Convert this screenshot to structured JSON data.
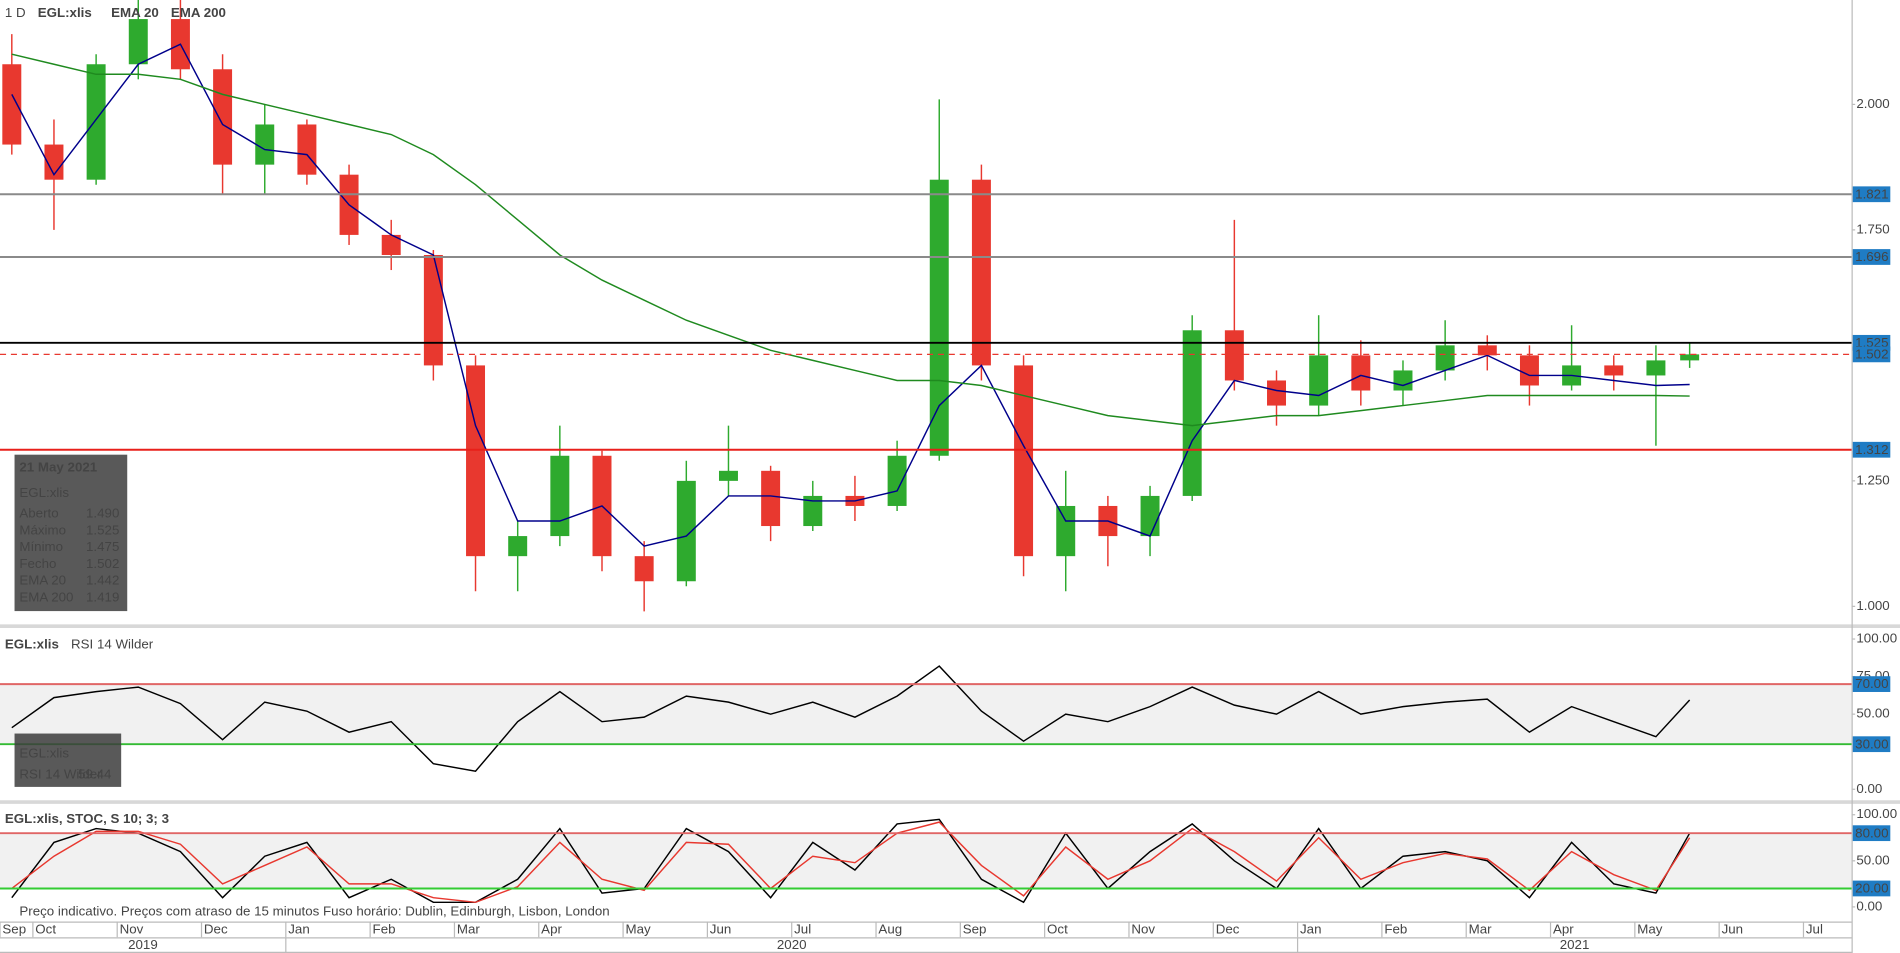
{
  "chart_data": [
    {
      "type": "candlestick",
      "interval": "1 D",
      "symbol": "EGL:xlis",
      "x": [
        0.75,
        1.25,
        1.75,
        2.25,
        2.75,
        3.25,
        3.75,
        4.25,
        4.75,
        5.25,
        5.75,
        6.25,
        6.75,
        7.25,
        7.75,
        8.25,
        8.75,
        9.25,
        9.75,
        10.25,
        10.75,
        11.25,
        11.75,
        12.25,
        12.75,
        13.25,
        13.75,
        14.25,
        14.75,
        15.25,
        15.75,
        16.25,
        16.75,
        17.25,
        17.75,
        18.25,
        18.75,
        19.25,
        19.75,
        20.25,
        20.65
      ],
      "open": [
        2.08,
        1.92,
        1.85,
        2.08,
        2.17,
        2.07,
        1.88,
        1.96,
        1.86,
        1.74,
        1.7,
        1.48,
        1.1,
        1.14,
        1.3,
        1.1,
        1.05,
        1.25,
        1.27,
        1.16,
        1.22,
        1.2,
        1.3,
        1.85,
        1.48,
        1.1,
        1.2,
        1.14,
        1.22,
        1.55,
        1.45,
        1.4,
        1.5,
        1.43,
        1.47,
        1.52,
        1.5,
        1.44,
        1.48,
        1.46,
        1.49
      ],
      "high": [
        2.14,
        1.97,
        2.1,
        2.23,
        2.25,
        2.1,
        2.0,
        1.97,
        1.88,
        1.77,
        1.71,
        1.5,
        1.17,
        1.36,
        1.31,
        1.13,
        1.29,
        1.36,
        1.28,
        1.25,
        1.26,
        1.33,
        2.01,
        1.88,
        1.5,
        1.27,
        1.22,
        1.24,
        1.58,
        1.77,
        1.47,
        1.58,
        1.53,
        1.49,
        1.57,
        1.54,
        1.52,
        1.56,
        1.5,
        1.52,
        1.525
      ],
      "low": [
        1.9,
        1.75,
        1.84,
        2.05,
        2.05,
        1.82,
        1.82,
        1.84,
        1.72,
        1.67,
        1.45,
        1.03,
        1.03,
        1.12,
        1.07,
        0.99,
        1.04,
        1.22,
        1.13,
        1.15,
        1.17,
        1.19,
        1.29,
        1.45,
        1.06,
        1.03,
        1.08,
        1.1,
        1.21,
        1.43,
        1.36,
        1.38,
        1.4,
        1.4,
        1.45,
        1.47,
        1.4,
        1.43,
        1.43,
        1.32,
        1.475
      ],
      "close": [
        1.92,
        1.85,
        2.08,
        2.17,
        2.07,
        1.88,
        1.96,
        1.86,
        1.74,
        1.7,
        1.48,
        1.1,
        1.14,
        1.3,
        1.1,
        1.05,
        1.25,
        1.27,
        1.16,
        1.22,
        1.2,
        1.3,
        1.85,
        1.48,
        1.1,
        1.2,
        1.14,
        1.22,
        1.55,
        1.45,
        1.4,
        1.5,
        1.43,
        1.47,
        1.52,
        1.5,
        1.44,
        1.48,
        1.46,
        1.49,
        1.502
      ],
      "up_color": "#2eaa2e",
      "down_color": "#e8382f",
      "series": [
        {
          "name": "EMA 20",
          "color": "#00008b",
          "values": [
            2.02,
            1.86,
            1.97,
            2.08,
            2.12,
            1.96,
            1.91,
            1.9,
            1.8,
            1.74,
            1.7,
            1.36,
            1.17,
            1.17,
            1.2,
            1.12,
            1.14,
            1.22,
            1.22,
            1.21,
            1.21,
            1.23,
            1.4,
            1.48,
            1.32,
            1.17,
            1.17,
            1.14,
            1.33,
            1.45,
            1.43,
            1.42,
            1.46,
            1.44,
            1.47,
            1.5,
            1.46,
            1.46,
            1.45,
            1.44,
            1.442
          ]
        },
        {
          "name": "EMA 200",
          "color": "#1f8a1f",
          "values": [
            2.1,
            2.08,
            2.06,
            2.06,
            2.05,
            2.02,
            2.0,
            1.98,
            1.96,
            1.94,
            1.9,
            1.84,
            1.77,
            1.7,
            1.65,
            1.61,
            1.57,
            1.54,
            1.51,
            1.49,
            1.47,
            1.45,
            1.45,
            1.44,
            1.42,
            1.4,
            1.38,
            1.37,
            1.36,
            1.37,
            1.38,
            1.38,
            1.39,
            1.4,
            1.41,
            1.42,
            1.42,
            1.42,
            1.42,
            1.42,
            1.419
          ]
        }
      ],
      "xlim": [
        0.61,
        22.57
      ],
      "xticks": [
        {
          "value": 0.61,
          "label": "Sep"
        },
        {
          "value": 1,
          "label": "Oct"
        },
        {
          "value": 2,
          "label": "Nov"
        },
        {
          "value": 3,
          "label": "Dec"
        },
        {
          "value": 4,
          "label": "Jan"
        },
        {
          "value": 5,
          "label": "Feb"
        },
        {
          "value": 6,
          "label": "Mar"
        },
        {
          "value": 7,
          "label": "Apr"
        },
        {
          "value": 8,
          "label": "May"
        },
        {
          "value": 9,
          "label": "Jun"
        },
        {
          "value": 10,
          "label": "Jul"
        },
        {
          "value": 11,
          "label": "Aug"
        },
        {
          "value": 12,
          "label": "Sep"
        },
        {
          "value": 13,
          "label": "Oct"
        },
        {
          "value": 14,
          "label": "Nov"
        },
        {
          "value": 15,
          "label": "Dec"
        },
        {
          "value": 16,
          "label": "Jan"
        },
        {
          "value": 17,
          "label": "Feb"
        },
        {
          "value": 18,
          "label": "Mar"
        },
        {
          "value": 19,
          "label": "Apr"
        },
        {
          "value": 20,
          "label": "May"
        },
        {
          "value": 21,
          "label": "Jun"
        },
        {
          "value": 22,
          "label": "Jul"
        }
      ],
      "year_labels": [
        "2019",
        "2020",
        "2021"
      ],
      "year_starts": [
        4,
        16
      ],
      "ylim": [
        0.964,
        2.208
      ],
      "yticks": [
        {
          "value": 1,
          "label": "1.000"
        },
        {
          "value": 1.25,
          "label": "1.250"
        },
        {
          "value": 1.75,
          "label": "1.750"
        },
        {
          "value": 2,
          "label": "2.000"
        }
      ],
      "levels": [
        {
          "value": 1.821,
          "color": "#8a8a8a",
          "style": "solid"
        },
        {
          "value": 1.696,
          "color": "#8a8a8a",
          "style": "solid"
        },
        {
          "value": 1.525,
          "color": "#000000",
          "style": "solid"
        },
        {
          "value": 1.502,
          "color": "#e8382f",
          "style": "dashed"
        },
        {
          "value": 1.312,
          "color": "#e8201a",
          "style": "solid"
        }
      ],
      "tooltip": {
        "date": "21 May 2021",
        "symbol": "EGL:xlis",
        "rows": [
          {
            "label": "Aberto",
            "value": "1.490"
          },
          {
            "label": "Máximo",
            "value": "1.525"
          },
          {
            "label": "Mínimo",
            "value": "1.475"
          },
          {
            "label": "Fecho",
            "value": "1.502"
          },
          {
            "label": "EMA 20",
            "value": "1.442",
            "color": "#1a1aff"
          },
          {
            "label": "EMA 200",
            "value": "1.419",
            "color": "#1f8a1f"
          }
        ]
      }
    },
    {
      "type": "line",
      "symbol": "EGL:xlis",
      "series": [
        {
          "name": "RSI 14 Wilder",
          "color": "#000000",
          "values": [
            41,
            61,
            65,
            68,
            57,
            33,
            58,
            52,
            38,
            45,
            17,
            12,
            45,
            65,
            45,
            48,
            62,
            58,
            50,
            58,
            48,
            62,
            82,
            52,
            32,
            50,
            45,
            55,
            68,
            56,
            50,
            65,
            50,
            55,
            58,
            60,
            38,
            55,
            45,
            35,
            59.44
          ]
        }
      ],
      "ylim": [
        -7.3,
        107.3
      ],
      "yticks": [
        {
          "value": 0,
          "label": "0.00"
        },
        {
          "value": 50,
          "label": "50.00"
        },
        {
          "value": 75,
          "label": "75.00"
        },
        {
          "value": 100,
          "label": "100.00"
        }
      ],
      "levels": [
        {
          "value": 70,
          "label": "70.00",
          "color": "#e06666"
        },
        {
          "value": 30,
          "label": "30.00",
          "color": "#33bb33"
        }
      ],
      "band": true,
      "tooltip": {
        "symbol": "EGL:xlis",
        "label": "RSI 14 Wilder",
        "value": "59.44"
      }
    },
    {
      "type": "line",
      "title": "EGL:xlis, STOC, S 10; 3; 3",
      "series": [
        {
          "color": "#000000",
          "values": [
            10,
            70,
            85,
            80,
            60,
            10,
            55,
            70,
            10,
            30,
            5,
            5,
            30,
            85,
            15,
            20,
            85,
            60,
            10,
            70,
            40,
            90,
            95,
            30,
            5,
            80,
            20,
            60,
            90,
            50,
            20,
            85,
            20,
            55,
            60,
            50,
            10,
            70,
            25,
            15,
            80
          ]
        },
        {
          "color": "#e8382f",
          "values": [
            20,
            55,
            82,
            82,
            68,
            25,
            45,
            65,
            25,
            25,
            10,
            5,
            22,
            70,
            30,
            18,
            70,
            68,
            20,
            55,
            48,
            80,
            92,
            45,
            12,
            65,
            30,
            50,
            85,
            60,
            28,
            75,
            30,
            48,
            58,
            52,
            18,
            60,
            35,
            18,
            75
          ]
        }
      ],
      "ylim": [
        -15.8,
        111.8
      ],
      "yticks": [
        {
          "value": 0,
          "label": "0.00"
        },
        {
          "value": 50,
          "label": "50.00"
        },
        {
          "value": 100,
          "label": "100.00"
        }
      ],
      "levels": [
        {
          "value": 80,
          "label": "80.00",
          "color": "#e06666"
        },
        {
          "value": 20,
          "label": "20.00",
          "color": "#33cc33"
        }
      ],
      "band": true,
      "note": "Preço indicativo. Preços com atraso de 15 minutos    Fuso horário: Dublin, Edinburgh, Lisbon, London"
    }
  ]
}
